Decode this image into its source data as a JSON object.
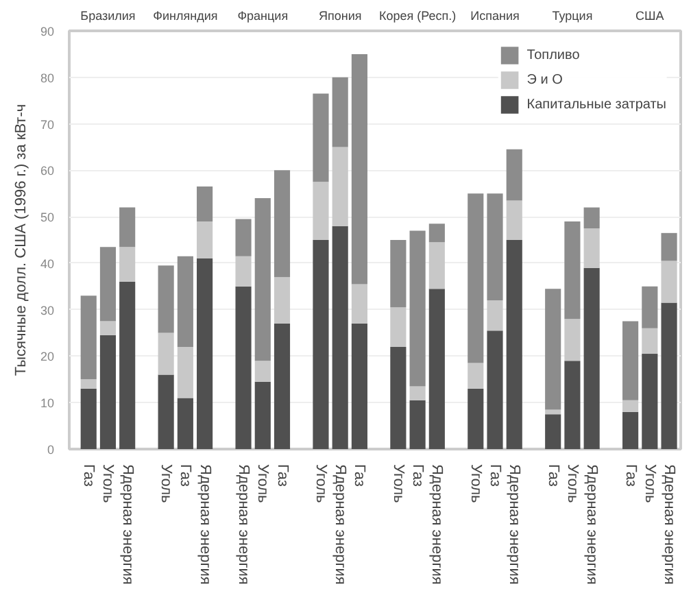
{
  "chart_data": {
    "type": "bar",
    "stacked": true,
    "ylabel": "Тысячные долл. США (1996 г.) за кВт-ч",
    "categories": [
      "Газ",
      "Уголь",
      "Ядерная энергия",
      "Уголь",
      "Газ",
      "Ядерная энергия",
      "Ядерная энергия",
      "Уголь",
      "Газ",
      "Уголь",
      "Ядерная энергия",
      "Газ",
      "Уголь",
      "Газ",
      "Ядерная энергия",
      "Уголь",
      "Газ",
      "Ядерная энергия",
      "Газ",
      "Уголь",
      "Ядерная энергия",
      "Газ",
      "Уголь",
      "Ядерная энергия"
    ],
    "series": [
      {
        "name": "Капитальные затраты",
        "color": "#505050",
        "values": [
          13,
          24.5,
          36,
          16,
          11,
          41,
          35,
          14.5,
          27,
          45,
          48,
          27,
          22,
          10.5,
          34.5,
          13,
          25.5,
          45,
          7.5,
          19,
          39,
          8,
          20.5,
          31.5
        ]
      },
      {
        "name": "Э и О",
        "color": "#c8c8c8",
        "values": [
          2,
          3,
          7.5,
          9,
          11,
          8,
          6.5,
          4.5,
          10,
          12.5,
          17,
          8.5,
          8.5,
          3,
          10,
          5.5,
          6.5,
          8.5,
          1,
          9,
          8.5,
          2.5,
          5.5,
          9
        ]
      },
      {
        "name": "Топливо",
        "color": "#8c8c8c",
        "values": [
          18,
          16,
          8.5,
          14.5,
          19.5,
          7.5,
          8,
          35,
          23,
          19,
          15,
          49.5,
          14.5,
          33.5,
          4,
          36.5,
          23,
          11,
          26,
          21,
          4.5,
          17,
          9,
          6
        ]
      }
    ],
    "annotations": [
      "Бразилия",
      "Финляндия",
      "Франция",
      "Япония",
      "Корея (Респ.)",
      "Испания",
      "Турция",
      "США"
    ],
    "ylim": [
      0,
      90
    ],
    "yticks": [
      0,
      10,
      20,
      30,
      40,
      50,
      60,
      70,
      80,
      90
    ],
    "grid": "y",
    "legend": "top right"
  }
}
